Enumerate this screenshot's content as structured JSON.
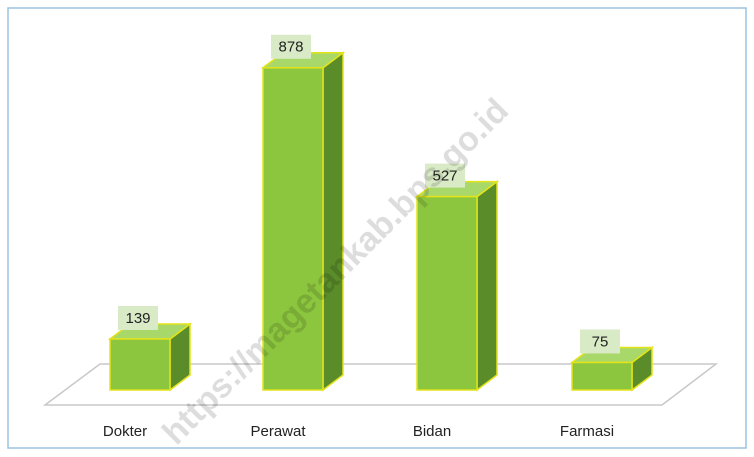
{
  "chart_data": {
    "type": "bar3d",
    "categories": [
      "Dokter",
      "Perawat",
      "Bidan",
      "Farmasi"
    ],
    "values": [
      139,
      878,
      527,
      75
    ],
    "color": "#8cc63f",
    "annotations": [
      "https://magetankab.bps.go.id"
    ]
  }
}
